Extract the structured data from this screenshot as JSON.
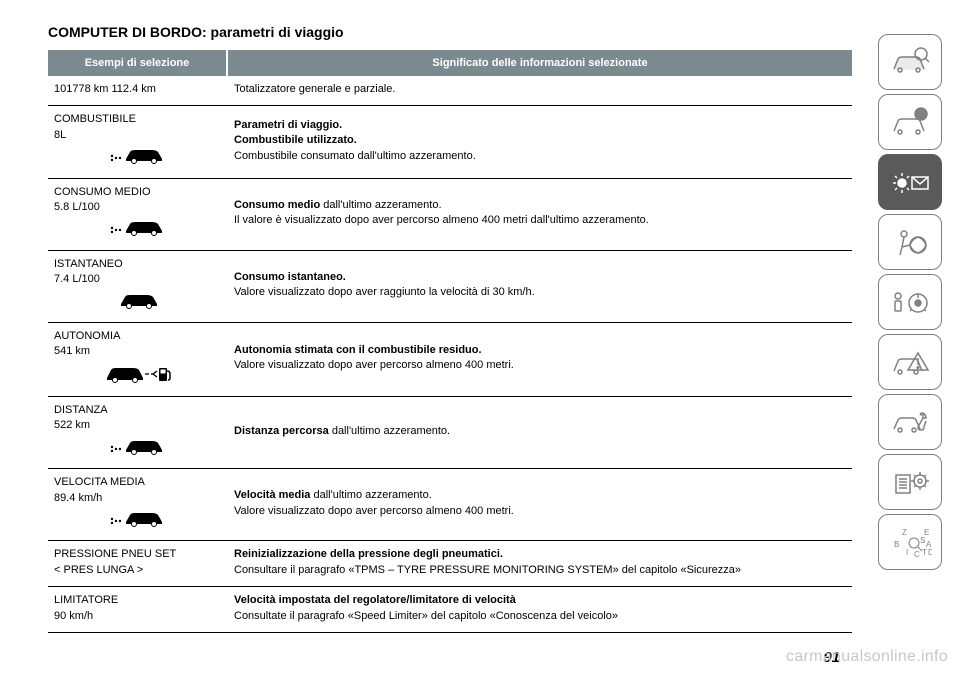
{
  "title": "COMPUTER DI BORDO: parametri di viaggio",
  "header": {
    "col1": "Esempi di selezione",
    "col2": "Significato delle informazioni selezionate"
  },
  "rows": [
    {
      "label1": "101778 km 112.4 km",
      "label2": "",
      "icon": "none",
      "desc_html": "Totalizzatore generale e parziale."
    },
    {
      "label1": "COMBUSTIBILE",
      "label2": "8L",
      "icon": "car-dots",
      "desc_html": "<b>Parametri di viaggio.</b><br><b>Combustibile utilizzato.</b><br>Combustibile consumato dall'ultimo azzeramento."
    },
    {
      "label1": "CONSUMO MEDIO",
      "label2": "5.8 L/100",
      "icon": "car-dots",
      "desc_html": "<b>Consumo medio</b> dall'ultimo azzeramento.<br>Il valore è visualizzato dopo aver percorso almeno 400 metri dall'ultimo azzeramento."
    },
    {
      "label1": "ISTANTANEO",
      "label2": "7.4 L/100",
      "icon": "car",
      "desc_html": "<b>Consumo istantaneo.</b><br>Valore visualizzato dopo aver raggiunto la velocità di 30 km/h."
    },
    {
      "label1": "AUTONOMIA",
      "label2": "541 km",
      "icon": "car-fuel",
      "desc_html": "<b>Autonomia stimata con il combustibile residuo.</b><br>Valore visualizzato dopo aver percorso almeno 400 metri."
    },
    {
      "label1": "DISTANZA",
      "label2": "522 km",
      "icon": "car-dots",
      "desc_html": "<b>Distanza percorsa</b> dall'ultimo azzeramento."
    },
    {
      "label1": "VELOCITA MEDIA",
      "label2": "89.4 km/h",
      "icon": "car-dots",
      "desc_html": "<b>Velocità media</b> dall'ultimo azzeramento.<br>Valore visualizzato dopo aver percorso almeno 400 metri."
    },
    {
      "label1": "PRESSIONE PNEU SET",
      "label2": "< PRES LUNGA >",
      "icon": "none",
      "desc_html": "<b>Reinizializzazione della pressione degli pneumatici.</b><br>Consultare il paragrafo «TPMS – TYRE PRESSURE MONITORING SYSTEM» del capitolo «Sicurezza»"
    },
    {
      "label1": "LIMITATORE",
      "label2": "90 km/h",
      "icon": "none",
      "desc_html": "<b>Velocità impostata del regolatore/limitatore di velocità</b><br>Consultate il paragrafo «Speed Limiter» del capitolo «Conoscenza del veicolo»"
    }
  ],
  "page_number": "91",
  "watermark": "carmanualsonline.info",
  "sidebar_active_index": 2,
  "colors": {
    "header_bg": "#7b8a8e",
    "header_fg": "#ffffff",
    "border": "#000000",
    "sidebar_border": "#808080",
    "sidebar_active": "#5a5a5a",
    "watermark": "#c8c8c8"
  }
}
